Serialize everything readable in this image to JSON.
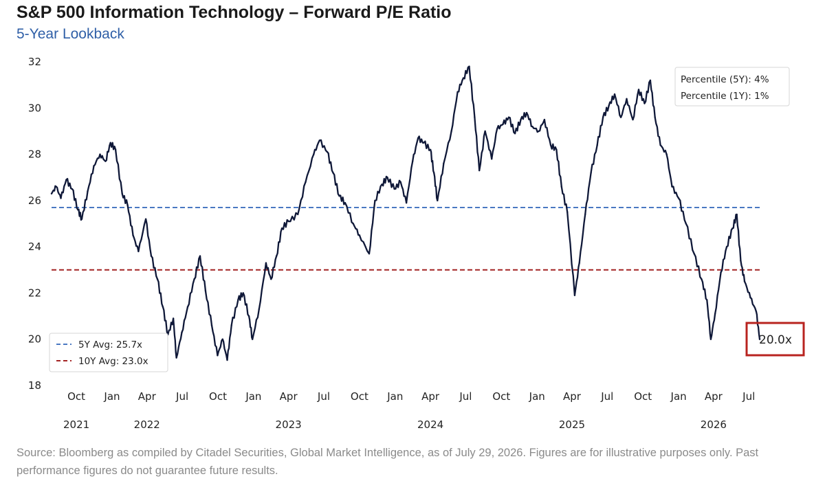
{
  "title": "S&P 500 Information Technology – Forward P/E Ratio",
  "subtitle": "5-Year Lookback",
  "footer": "Source: Bloomberg as compiled by Citadel Securities, Global Market Intelligence, as of July 29, 2026. Figures are for illustrative purposes only. Past performance figures do not guarantee future results.",
  "percentile_box": {
    "line1": "Percentile (5Y): 4%",
    "line2": "Percentile (1Y): 1%"
  },
  "end_label": "20.0x",
  "colors": {
    "line": "#0f1838",
    "avg5": "#4a78c2",
    "avg10": "#a32222",
    "highlight": "#b8231f",
    "subtitle": "#2f5fa7"
  },
  "chart_data": {
    "type": "line",
    "title": "S&P 500 Information Technology – Forward P/E Ratio",
    "subtitle": "5-Year Lookback",
    "xlabel": "",
    "ylabel": "",
    "ylim": [
      18,
      32
    ],
    "yticks": [
      18,
      20,
      22,
      24,
      26,
      28,
      30,
      32
    ],
    "xlim": [
      "2021-07-29",
      "2026-07-29"
    ],
    "xticks": [
      {
        "date": "2021-10-01",
        "label": "Oct"
      },
      {
        "date": "2022-01-01",
        "label": "Jan"
      },
      {
        "date": "2022-04-01",
        "label": "Apr"
      },
      {
        "date": "2022-07-01",
        "label": "Jul"
      },
      {
        "date": "2022-10-01",
        "label": "Oct"
      },
      {
        "date": "2023-01-01",
        "label": "Jan"
      },
      {
        "date": "2023-04-01",
        "label": "Apr"
      },
      {
        "date": "2023-07-01",
        "label": "Jul"
      },
      {
        "date": "2023-10-01",
        "label": "Oct"
      },
      {
        "date": "2024-01-01",
        "label": "Jan"
      },
      {
        "date": "2024-04-01",
        "label": "Apr"
      },
      {
        "date": "2024-07-01",
        "label": "Jul"
      },
      {
        "date": "2024-10-01",
        "label": "Oct"
      },
      {
        "date": "2025-01-01",
        "label": "Jan"
      },
      {
        "date": "2025-04-01",
        "label": "Apr"
      },
      {
        "date": "2025-07-01",
        "label": "Jul"
      },
      {
        "date": "2025-10-01",
        "label": "Oct"
      },
      {
        "date": "2026-01-01",
        "label": "Jan"
      },
      {
        "date": "2026-04-01",
        "label": "Apr"
      },
      {
        "date": "2026-07-01",
        "label": "Jul"
      }
    ],
    "year_labels": [
      {
        "date": "2021-10-01",
        "label": "2021"
      },
      {
        "date": "2022-04-01",
        "label": "2022"
      },
      {
        "date": "2023-04-01",
        "label": "2023"
      },
      {
        "date": "2024-04-01",
        "label": "2024"
      },
      {
        "date": "2025-04-01",
        "label": "2025"
      },
      {
        "date": "2026-04-01",
        "label": "2026"
      }
    ],
    "grid": false,
    "legend_position": "bottom-left",
    "reference_lines": [
      {
        "name": "5Y Avg: 25.7x",
        "value": 25.7,
        "style": "dashed",
        "color": "#4a78c2"
      },
      {
        "name": "10Y Avg: 23.0x",
        "value": 23.0,
        "style": "dashed",
        "color": "#a32222"
      }
    ],
    "series": [
      {
        "color": "#0f1838",
        "points": [
          [
            "2021-07-29",
            26.3
          ],
          [
            "2021-08-10",
            26.6
          ],
          [
            "2021-08-22",
            26.1
          ],
          [
            "2021-09-05",
            26.9
          ],
          [
            "2021-09-20",
            26.5
          ],
          [
            "2021-10-05",
            25.6
          ],
          [
            "2021-10-15",
            25.2
          ],
          [
            "2021-10-30",
            26.4
          ],
          [
            "2021-11-15",
            27.5
          ],
          [
            "2021-12-01",
            28.0
          ],
          [
            "2021-12-15",
            27.7
          ],
          [
            "2021-12-28",
            28.5
          ],
          [
            "2022-01-10",
            28.2
          ],
          [
            "2022-01-27",
            26.3
          ],
          [
            "2022-02-10",
            25.8
          ],
          [
            "2022-02-24",
            24.5
          ],
          [
            "2022-03-10",
            23.8
          ],
          [
            "2022-03-29",
            25.2
          ],
          [
            "2022-04-12",
            23.6
          ],
          [
            "2022-04-28",
            22.6
          ],
          [
            "2022-05-12",
            21.4
          ],
          [
            "2022-05-25",
            20.2
          ],
          [
            "2022-06-08",
            20.9
          ],
          [
            "2022-06-16",
            19.2
          ],
          [
            "2022-06-30",
            20.3
          ],
          [
            "2022-07-15",
            21.4
          ],
          [
            "2022-08-01",
            22.6
          ],
          [
            "2022-08-16",
            23.6
          ],
          [
            "2022-08-30",
            22.1
          ],
          [
            "2022-09-15",
            20.6
          ],
          [
            "2022-09-30",
            19.3
          ],
          [
            "2022-10-13",
            20.0
          ],
          [
            "2022-10-25",
            19.1
          ],
          [
            "2022-11-05",
            20.6
          ],
          [
            "2022-11-22",
            21.7
          ],
          [
            "2022-12-05",
            22.0
          ],
          [
            "2022-12-20",
            21.0
          ],
          [
            "2022-12-29",
            20.0
          ],
          [
            "2023-01-15",
            21.3
          ],
          [
            "2023-02-02",
            23.3
          ],
          [
            "2023-02-15",
            22.6
          ],
          [
            "2023-03-01",
            23.6
          ],
          [
            "2023-03-15",
            24.8
          ],
          [
            "2023-04-01",
            25.1
          ],
          [
            "2023-04-25",
            25.4
          ],
          [
            "2023-05-15",
            26.8
          ],
          [
            "2023-06-05",
            28.0
          ],
          [
            "2023-06-20",
            28.6
          ],
          [
            "2023-07-10",
            28.1
          ],
          [
            "2023-07-25",
            27.2
          ],
          [
            "2023-08-10",
            26.2
          ],
          [
            "2023-08-25",
            25.9
          ],
          [
            "2023-09-15",
            25.0
          ],
          [
            "2023-10-01",
            24.5
          ],
          [
            "2023-10-26",
            23.7
          ],
          [
            "2023-11-10",
            26.0
          ],
          [
            "2023-11-28",
            26.7
          ],
          [
            "2023-12-12",
            27.0
          ],
          [
            "2023-12-30",
            26.5
          ],
          [
            "2024-01-15",
            26.8
          ],
          [
            "2024-01-30",
            25.9
          ],
          [
            "2024-02-15",
            27.7
          ],
          [
            "2024-02-29",
            28.7
          ],
          [
            "2024-03-15",
            28.5
          ],
          [
            "2024-04-01",
            28.2
          ],
          [
            "2024-04-10",
            27.2
          ],
          [
            "2024-04-19",
            26.0
          ],
          [
            "2024-05-05",
            27.6
          ],
          [
            "2024-05-25",
            29.0
          ],
          [
            "2024-06-10",
            30.7
          ],
          [
            "2024-06-25",
            31.3
          ],
          [
            "2024-07-10",
            31.8
          ],
          [
            "2024-07-24",
            29.6
          ],
          [
            "2024-08-05",
            27.3
          ],
          [
            "2024-08-20",
            29.0
          ],
          [
            "2024-09-06",
            27.8
          ],
          [
            "2024-09-20",
            29.1
          ],
          [
            "2024-10-05",
            29.3
          ],
          [
            "2024-10-20",
            29.6
          ],
          [
            "2024-11-05",
            28.9
          ],
          [
            "2024-11-20",
            29.5
          ],
          [
            "2024-12-05",
            29.8
          ],
          [
            "2024-12-20",
            29.2
          ],
          [
            "2025-01-05",
            29.0
          ],
          [
            "2025-01-20",
            29.5
          ],
          [
            "2025-02-05",
            28.4
          ],
          [
            "2025-02-20",
            28.2
          ],
          [
            "2025-03-05",
            26.6
          ],
          [
            "2025-03-20",
            25.5
          ],
          [
            "2025-04-08",
            21.9
          ],
          [
            "2025-04-20",
            23.3
          ],
          [
            "2025-05-05",
            25.4
          ],
          [
            "2025-05-20",
            27.2
          ],
          [
            "2025-06-05",
            28.4
          ],
          [
            "2025-06-20",
            29.6
          ],
          [
            "2025-07-05",
            30.1
          ],
          [
            "2025-07-20",
            30.6
          ],
          [
            "2025-08-05",
            29.6
          ],
          [
            "2025-08-20",
            30.4
          ],
          [
            "2025-09-05",
            29.5
          ],
          [
            "2025-09-20",
            30.8
          ],
          [
            "2025-10-05",
            30.2
          ],
          [
            "2025-10-20",
            31.2
          ],
          [
            "2025-11-01",
            29.6
          ],
          [
            "2025-11-15",
            28.4
          ],
          [
            "2025-12-01",
            28.0
          ],
          [
            "2025-12-15",
            26.6
          ],
          [
            "2026-01-01",
            26.1
          ],
          [
            "2026-01-20",
            25.0
          ],
          [
            "2026-02-10",
            23.7
          ],
          [
            "2026-03-01",
            22.6
          ],
          [
            "2026-03-15",
            21.7
          ],
          [
            "2026-03-25",
            20.0
          ],
          [
            "2026-04-05",
            21.1
          ],
          [
            "2026-04-20",
            22.9
          ],
          [
            "2026-05-05",
            24.0
          ],
          [
            "2026-05-20",
            24.8
          ],
          [
            "2026-05-31",
            25.4
          ],
          [
            "2026-06-10",
            23.4
          ],
          [
            "2026-06-20",
            22.5
          ],
          [
            "2026-07-05",
            21.8
          ],
          [
            "2026-07-20",
            21.2
          ],
          [
            "2026-07-29",
            20.0
          ]
        ]
      }
    ]
  }
}
